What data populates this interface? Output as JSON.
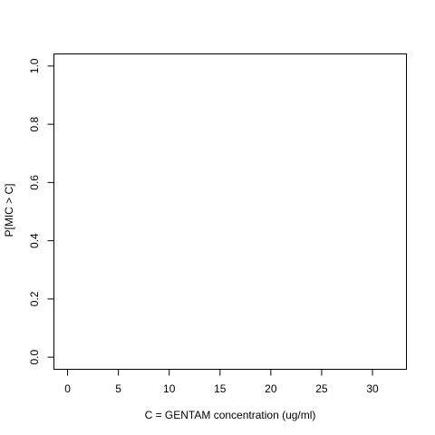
{
  "chart_data": {
    "type": "line",
    "title": "",
    "xlabel": "C = GENTAM concentration (ug/ml)",
    "ylabel": "P[MIC > C]",
    "xlim": [
      -1.3,
      33.3
    ],
    "ylim": [
      -0.04,
      1.04
    ],
    "x_ticks": [
      0,
      5,
      10,
      15,
      20,
      25,
      30
    ],
    "y_ticks": [
      0.0,
      0.2,
      0.4,
      0.6,
      0.8,
      1.0
    ],
    "x_tick_labels": [
      "0",
      "5",
      "10",
      "15",
      "20",
      "25",
      "30"
    ],
    "y_tick_labels": [
      "0.0",
      "0.2",
      "0.4",
      "0.6",
      "0.8",
      "1.0"
    ],
    "series": [],
    "grid": false,
    "legend": "none"
  }
}
